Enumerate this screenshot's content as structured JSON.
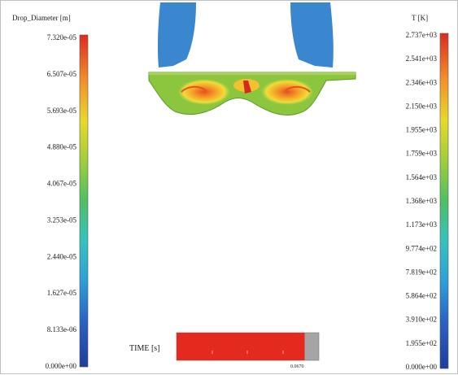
{
  "left_legend": {
    "title": "Drop_Diameter [m]",
    "labels": [
      "7.320e-05",
      "6.507e-05",
      "5.693e-05",
      "4.880e-05",
      "4.067e-05",
      "3.253e-05",
      "2.440e-05",
      "1.627e-05",
      "8.133e-06",
      "0.000e+00"
    ]
  },
  "right_legend": {
    "title": "T [K]",
    "labels": [
      "2.737e+03",
      "2.541e+03",
      "2.346e+03",
      "2.150e+03",
      "1.955e+03",
      "1.759e+03",
      "1.564e+03",
      "1.368e+03",
      "1.173e+03",
      "9.774e+02",
      "7.819e+02",
      "5.864e+02",
      "3.910e+02",
      "1.955e+02",
      "0.000e+00"
    ]
  },
  "time_bar": {
    "label": "TIME [s]",
    "value": "0.0670",
    "progress": 0.9
  },
  "colors": {
    "spray_blue": "#3a86cf",
    "chamber_green": "#8cc63f",
    "hot_red": "#e8251c",
    "bar_red": "#e42a1f",
    "bar_gray": "#a5a5a5"
  }
}
